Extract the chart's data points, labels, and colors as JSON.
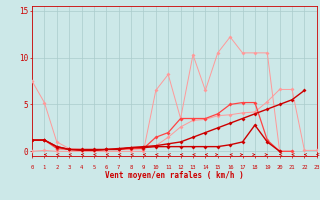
{
  "x": [
    0,
    1,
    2,
    3,
    4,
    5,
    6,
    7,
    8,
    9,
    10,
    11,
    12,
    13,
    14,
    15,
    16,
    17,
    18,
    19,
    20,
    21,
    22,
    23
  ],
  "line_lp_fall": [
    7.5,
    5.2,
    1.0,
    0.3,
    0.2,
    0.1,
    0.2,
    0.2,
    0.2,
    0.3,
    0.6,
    1.5,
    2.6,
    3.3,
    3.4,
    3.8,
    3.9,
    4.1,
    4.2,
    5.3,
    6.6,
    6.6,
    0.1,
    0.1
  ],
  "line_lp_peak": [
    0.0,
    0.1,
    0.0,
    0.0,
    0.0,
    0.0,
    0.0,
    0.0,
    0.0,
    0.0,
    6.5,
    8.2,
    3.5,
    10.3,
    6.5,
    10.5,
    12.2,
    10.5,
    10.5,
    10.5,
    0.0,
    0.0,
    null,
    null
  ],
  "line_mr": [
    1.2,
    1.2,
    0.3,
    0.2,
    0.1,
    0.1,
    0.2,
    0.2,
    0.3,
    0.3,
    1.5,
    2.0,
    3.5,
    3.5,
    3.5,
    4.0,
    5.0,
    5.2,
    5.2,
    1.2,
    0.0,
    0.0,
    null,
    null
  ],
  "line_dr1": [
    1.2,
    1.2,
    0.5,
    0.2,
    0.2,
    0.2,
    0.2,
    0.3,
    0.4,
    0.5,
    0.6,
    0.8,
    1.0,
    1.5,
    2.0,
    2.5,
    3.0,
    3.5,
    4.0,
    4.5,
    5.0,
    5.5,
    6.5,
    null
  ],
  "line_dr2": [
    1.2,
    1.2,
    0.5,
    0.2,
    0.1,
    0.1,
    0.2,
    0.2,
    0.4,
    0.4,
    0.5,
    0.5,
    0.5,
    0.5,
    0.5,
    0.5,
    0.7,
    1.0,
    2.8,
    1.0,
    0.0,
    null,
    null,
    null
  ],
  "bg_color": "#cce8e8",
  "grid_color": "#aacccc",
  "lp_color": "#ff9999",
  "mr_color": "#ff4444",
  "dr_color": "#cc0000",
  "tc": "#cc0000",
  "xlabel": "Vent moyen/en rafales ( km/h )",
  "yticks": [
    0,
    5,
    10,
    15
  ],
  "xlim": [
    0,
    23
  ],
  "ylim": [
    -0.5,
    15.5
  ]
}
